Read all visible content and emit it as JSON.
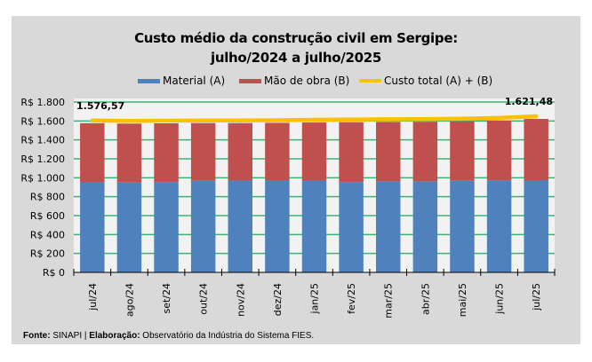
{
  "chart_data": {
    "type": "bar",
    "stacked": true,
    "title": "Custo médio da construção civil em Sergipe:",
    "subtitle": "julho/2024 a julho/2025",
    "xlabel": "",
    "ylabel": "",
    "ylim": [
      0,
      1800
    ],
    "ytick_step": 200,
    "ytick_labels": [
      "R$ 0",
      "R$ 200",
      "R$ 400",
      "R$ 600",
      "R$ 800",
      "R$ 1.000",
      "R$ 1.200",
      "R$ 1.400",
      "R$ 1.600",
      "R$ 1.800"
    ],
    "grid": true,
    "legend_position": "top",
    "categories": [
      "jul/24",
      "ago/24",
      "set/24",
      "out/24",
      "nov/24",
      "dez/24",
      "jan/25",
      "fev/25",
      "mar/25",
      "abr/25",
      "mai/25",
      "jun/25",
      "jul/25"
    ],
    "series": [
      {
        "name": "Material (A)",
        "type": "bar",
        "color": "#4f81bd",
        "values": [
          952,
          950,
          955,
          968,
          970,
          975,
          970,
          955,
          962,
          962,
          968,
          972,
          975
        ]
      },
      {
        "name": "Mão de obra (B)",
        "type": "bar",
        "color": "#c0504d",
        "values": [
          624.57,
          622,
          620,
          610,
          608,
          605,
          614,
          632,
          628,
          630,
          628,
          632,
          646.48
        ]
      },
      {
        "name": "Custo total (A) + (B)",
        "type": "line",
        "color": "#ffc000",
        "values": [
          1576.57,
          1572,
          1575,
          1578,
          1578,
          1580,
          1584,
          1587,
          1590,
          1592,
          1596,
          1604,
          1621.48
        ]
      }
    ],
    "annotations": [
      {
        "category": "jul/24",
        "text": "1.576,57"
      },
      {
        "category": "jul/25",
        "text": "1.621,48"
      }
    ]
  },
  "legend": {
    "material": "Material (A)",
    "mao_de_obra": "Mão de obra (B)",
    "custo_total": "Custo total (A) + (B)"
  },
  "source": {
    "fonte_label": "Fonte:",
    "fonte_value": " SINAPI | ",
    "elab_label": "Elaboração:",
    "elab_value": " Observatório da Indústria do Sistema FIES."
  },
  "colors": {
    "panel_bg": "#d9d9d9",
    "plot_bg": "#f2f2f2",
    "grid": "#3cb371",
    "material": "#4f81bd",
    "mao_de_obra": "#c0504d",
    "custo_total": "#ffc000"
  }
}
